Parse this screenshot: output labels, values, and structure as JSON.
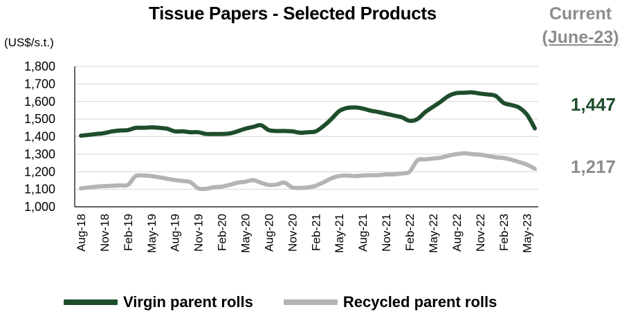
{
  "chart_data": {
    "type": "line",
    "title": "Tissue Papers - Selected Products",
    "ylabel": "(US$/s.t.)",
    "ylim": [
      1000,
      1800
    ],
    "yticks": [
      1000,
      1100,
      1200,
      1300,
      1400,
      1500,
      1600,
      1700,
      1800
    ],
    "ytick_labels": [
      "1,000",
      "1,100",
      "1,200",
      "1,300",
      "1,400",
      "1,500",
      "1,600",
      "1,700",
      "1,800"
    ],
    "grid": "horizontal",
    "legend_position": "bottom",
    "x": [
      "Aug-18",
      "Sep-18",
      "Oct-18",
      "Nov-18",
      "Dec-18",
      "Jan-19",
      "Feb-19",
      "Mar-19",
      "Apr-19",
      "May-19",
      "Jun-19",
      "Jul-19",
      "Aug-19",
      "Sep-19",
      "Oct-19",
      "Nov-19",
      "Dec-19",
      "Jan-20",
      "Feb-20",
      "Mar-20",
      "Apr-20",
      "May-20",
      "Jun-20",
      "Jul-20",
      "Aug-20",
      "Sep-20",
      "Oct-20",
      "Nov-20",
      "Dec-20",
      "Jan-21",
      "Feb-21",
      "Mar-21",
      "Apr-21",
      "May-21",
      "Jun-21",
      "Jul-21",
      "Aug-21",
      "Sep-21",
      "Oct-21",
      "Nov-21",
      "Dec-21",
      "Jan-22",
      "Feb-22",
      "Mar-22",
      "Apr-22",
      "May-22",
      "Jun-22",
      "Jul-22",
      "Aug-22",
      "Sep-22",
      "Oct-22",
      "Nov-22",
      "Dec-22",
      "Jan-23",
      "Feb-23",
      "Mar-23",
      "Apr-23",
      "May-23",
      "Jun-23"
    ],
    "x_tick_labels": [
      "Aug-18",
      "Nov-18",
      "Feb-19",
      "May-19",
      "Aug-19",
      "Nov-19",
      "Feb-20",
      "May-20",
      "Aug-20",
      "Nov-20",
      "Feb-21",
      "May-21",
      "Aug-21",
      "Nov-21",
      "Feb-22",
      "May-22",
      "Aug-22",
      "Nov-22",
      "Feb-23",
      "May-23"
    ],
    "series": [
      {
        "name": "Virgin parent rolls",
        "color": "#1e4d2b",
        "values": [
          1405,
          1410,
          1415,
          1420,
          1430,
          1435,
          1437,
          1450,
          1450,
          1453,
          1450,
          1445,
          1430,
          1430,
          1425,
          1425,
          1415,
          1415,
          1415,
          1418,
          1430,
          1445,
          1455,
          1465,
          1437,
          1432,
          1432,
          1430,
          1422,
          1425,
          1430,
          1460,
          1500,
          1545,
          1563,
          1566,
          1560,
          1548,
          1540,
          1530,
          1520,
          1510,
          1490,
          1500,
          1540,
          1570,
          1600,
          1632,
          1648,
          1650,
          1652,
          1645,
          1640,
          1632,
          1592,
          1580,
          1565,
          1525,
          1447
        ]
      },
      {
        "name": "Recycled parent rolls",
        "color": "#b4b4b4",
        "values": [
          1105,
          1110,
          1115,
          1118,
          1120,
          1122,
          1125,
          1175,
          1178,
          1175,
          1168,
          1160,
          1152,
          1147,
          1140,
          1105,
          1103,
          1112,
          1115,
          1125,
          1137,
          1143,
          1152,
          1137,
          1125,
          1127,
          1138,
          1110,
          1108,
          1110,
          1120,
          1140,
          1162,
          1175,
          1178,
          1175,
          1178,
          1180,
          1180,
          1185,
          1185,
          1190,
          1200,
          1265,
          1270,
          1275,
          1280,
          1292,
          1300,
          1305,
          1300,
          1297,
          1290,
          1282,
          1278,
          1268,
          1255,
          1240,
          1217
        ]
      }
    ],
    "current": {
      "heading": "Current",
      "period": "(June-23)",
      "virgin_value": "1,447",
      "recycled_value": "1,217"
    }
  }
}
